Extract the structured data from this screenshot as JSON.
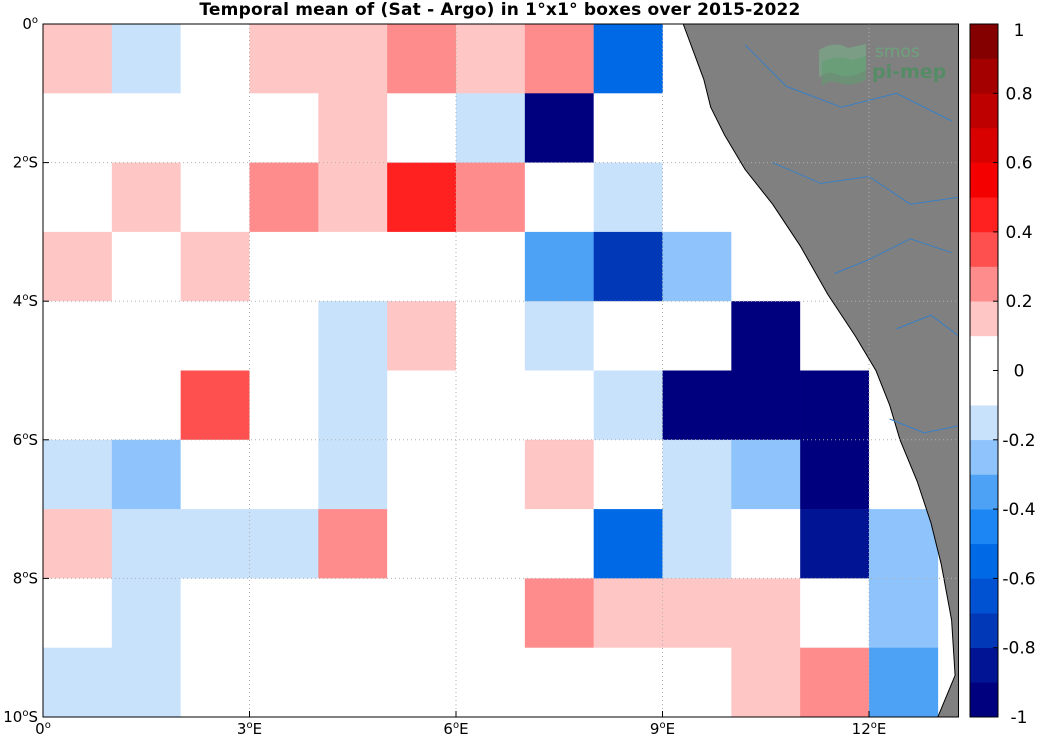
{
  "chart_data": {
    "type": "heatmap",
    "title": "Temporal mean of (Sat - Argo) in 1°x1° boxes over 2015-2022",
    "x_ticks": [
      {
        "value": 0,
        "label": "0",
        "sup": "o",
        "hem": ""
      },
      {
        "value": 3,
        "label": "3",
        "sup": "o",
        "hem": "E"
      },
      {
        "value": 6,
        "label": "6",
        "sup": "o",
        "hem": "E"
      },
      {
        "value": 9,
        "label": "9",
        "sup": "o",
        "hem": "E"
      },
      {
        "value": 12,
        "label": "12",
        "sup": "o",
        "hem": "E"
      }
    ],
    "y_ticks": [
      {
        "value": 0,
        "label": "0",
        "sup": "o",
        "hem": ""
      },
      {
        "value": -2,
        "label": "2",
        "sup": "o",
        "hem": "S"
      },
      {
        "value": -4,
        "label": "4",
        "sup": "o",
        "hem": "S"
      },
      {
        "value": -6,
        "label": "6",
        "sup": "o",
        "hem": "S"
      },
      {
        "value": -8,
        "label": "8",
        "sup": "o",
        "hem": "S"
      },
      {
        "value": -10,
        "label": "10",
        "sup": "o",
        "hem": "S"
      }
    ],
    "xlim": [
      0,
      13.3
    ],
    "ylim": [
      -10,
      0
    ],
    "grid": true,
    "colorbar": {
      "range": [
        -1,
        1
      ],
      "step": 0.1,
      "ticks": [
        {
          "value": 1,
          "label": "1"
        },
        {
          "value": 0.8,
          "label": "0.8"
        },
        {
          "value": 0.6,
          "label": "0.6"
        },
        {
          "value": 0.4,
          "label": "0.4"
        },
        {
          "value": 0.2,
          "label": "0.2"
        },
        {
          "value": 0,
          "label": "0"
        },
        {
          "value": -0.2,
          "label": "-0.2"
        },
        {
          "value": -0.4,
          "label": "-0.4"
        },
        {
          "value": -0.6,
          "label": "-0.6"
        },
        {
          "value": -0.8,
          "label": "-0.8"
        },
        {
          "value": -1,
          "label": "-1"
        }
      ],
      "colors": [
        "#00007f",
        "#001494",
        "#0038b8",
        "#0052d2",
        "#006ae6",
        "#1c86f5",
        "#4ea2f6",
        "#8ec4fb",
        "#c9e2fc",
        "#ffffff",
        "#ffffff",
        "#ffc6c6",
        "#ff8c8c",
        "#ff5050",
        "#ff2020",
        "#f50000",
        "#d90000",
        "#bf0000",
        "#a50000",
        "#840000"
      ]
    },
    "cells": {
      "note_columns": "columns are 1-degree boxes starting at 0E; rows start at 0 going south",
      "rows": [
        [
          0.15,
          -0.12,
          0.0,
          0.15,
          0.15,
          0.25,
          0.15,
          0.25,
          -0.55,
          null,
          null,
          null,
          null
        ],
        [
          0.0,
          0.0,
          0.0,
          0.0,
          0.15,
          0.0,
          -0.12,
          -0.95,
          0.0,
          null,
          null,
          null,
          null
        ],
        [
          0.0,
          0.15,
          0.0,
          0.25,
          0.15,
          0.45,
          0.25,
          0.0,
          -0.12,
          0.0,
          null,
          null,
          null
        ],
        [
          0.15,
          0.0,
          0.15,
          0.0,
          0.0,
          0.0,
          0.0,
          -0.35,
          -0.75,
          -0.25,
          0.0,
          null,
          null
        ],
        [
          0.0,
          0.0,
          0.0,
          0.0,
          -0.12,
          0.15,
          0.0,
          -0.12,
          0.0,
          0.0,
          -0.95,
          0.0,
          null
        ],
        [
          0.0,
          0.0,
          0.35,
          0.0,
          -0.12,
          0.0,
          0.0,
          0.0,
          -0.12,
          -0.95,
          -0.95,
          -0.95,
          0.0
        ],
        [
          -0.12,
          -0.25,
          0.0,
          0.0,
          -0.12,
          0.0,
          0.0,
          0.15,
          0.0,
          -0.12,
          -0.25,
          -0.95,
          0.0
        ],
        [
          0.15,
          -0.12,
          -0.12,
          -0.12,
          0.25,
          0.0,
          0.0,
          0.0,
          -0.55,
          -0.12,
          0.0,
          -0.8,
          -0.25
        ],
        [
          0.0,
          -0.12,
          0.0,
          0.0,
          0.0,
          0.0,
          0.0,
          0.25,
          0.15,
          0.15,
          0.15,
          0.0,
          -0.25
        ],
        [
          -0.12,
          -0.12,
          0.0,
          0.0,
          0.0,
          0.0,
          0.0,
          0.0,
          0.0,
          0.0,
          0.15,
          0.25,
          -0.35
        ]
      ]
    },
    "land_color": "#808080",
    "ocean_color": "#ffffff",
    "river_color": "#3a7fc4"
  },
  "logo": {
    "line1": "smos",
    "line2": "pi-mep"
  }
}
